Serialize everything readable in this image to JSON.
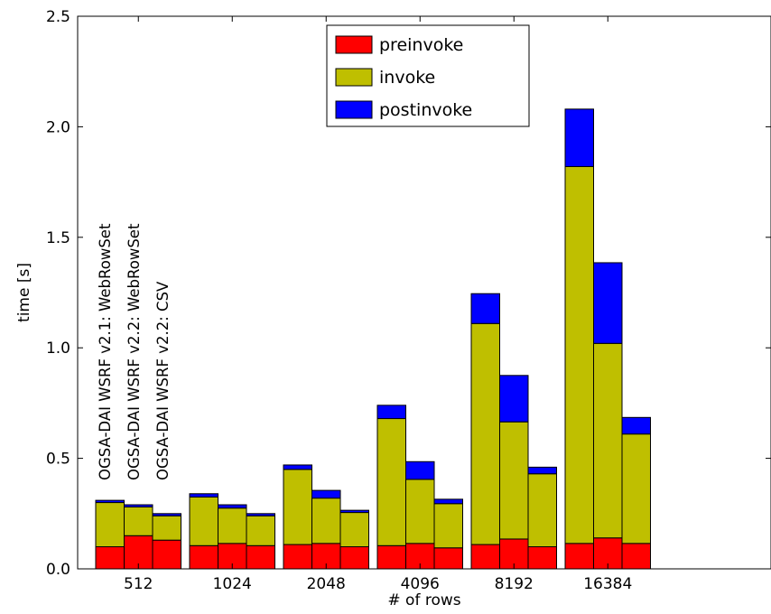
{
  "chart_data": {
    "type": "bar",
    "stacked": true,
    "title": "",
    "xlabel": "# of rows",
    "ylabel": "time [s]",
    "ylim": [
      0,
      2.5
    ],
    "yticks": [
      "0.0",
      "0.5",
      "1.0",
      "1.5",
      "2.0",
      "2.5"
    ],
    "categories": [
      "512",
      "1024",
      "2048",
      "4096",
      "8192",
      "16384"
    ],
    "bars_per_category": 3,
    "variants": [
      "OGSA-DAI WSRF v2.1: WebRowSet",
      "OGSA-DAI WSRF v2.2: WebRowSet",
      "OGSA-DAI WSRF v2.2: CSV"
    ],
    "legend_position": "top-center",
    "series": [
      {
        "name": "preinvoke",
        "color": "#ff0000",
        "values": [
          [
            0.1,
            0.15,
            0.13
          ],
          [
            0.105,
            0.115,
            0.105
          ],
          [
            0.11,
            0.115,
            0.1
          ],
          [
            0.105,
            0.115,
            0.095
          ],
          [
            0.11,
            0.135,
            0.1
          ],
          [
            0.115,
            0.14,
            0.115
          ]
        ]
      },
      {
        "name": "invoke",
        "color": "#bfbf00",
        "values": [
          [
            0.2,
            0.13,
            0.11
          ],
          [
            0.22,
            0.16,
            0.135
          ],
          [
            0.34,
            0.205,
            0.155
          ],
          [
            0.575,
            0.29,
            0.2
          ],
          [
            1.0,
            0.53,
            0.33
          ],
          [
            1.705,
            0.88,
            0.495
          ]
        ]
      },
      {
        "name": "postinvoke",
        "color": "#0000ff",
        "values": [
          [
            0.01,
            0.01,
            0.01
          ],
          [
            0.015,
            0.015,
            0.01
          ],
          [
            0.02,
            0.035,
            0.01
          ],
          [
            0.06,
            0.08,
            0.02
          ],
          [
            0.135,
            0.21,
            0.03
          ],
          [
            0.26,
            0.365,
            0.075
          ]
        ]
      }
    ]
  }
}
